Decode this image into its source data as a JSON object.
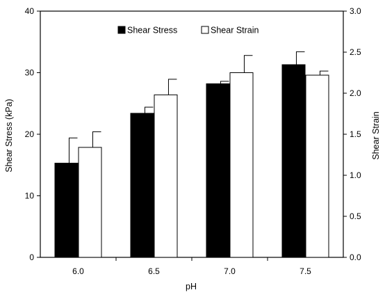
{
  "chart_data": {
    "type": "bar",
    "categories": [
      "6.0",
      "6.5",
      "7.0",
      "7.5"
    ],
    "xlabel": "pH",
    "ylabel_left": "Shear Stress (kPa)",
    "ylabel_right": "Shear Strain",
    "ylim_left": [
      0,
      40
    ],
    "ylim_right": [
      0,
      3.0
    ],
    "yticks_left": [
      "0",
      "10",
      "20",
      "30",
      "40"
    ],
    "yticks_right": [
      "0.0",
      "0.5",
      "1.0",
      "1.5",
      "2.0",
      "2.5",
      "3.0"
    ],
    "legend_position": "top-center",
    "grid": false,
    "series": [
      {
        "name": "Shear Stress",
        "axis": "left",
        "color": "#000000",
        "values": [
          15.3,
          23.4,
          28.2,
          31.3
        ],
        "errors": [
          4.1,
          1.0,
          0.4,
          2.1
        ]
      },
      {
        "name": "Shear Strain",
        "axis": "right",
        "color": "#ffffff",
        "values": [
          1.34,
          1.98,
          2.25,
          2.22
        ],
        "errors": [
          0.19,
          0.19,
          0.21,
          0.05
        ]
      }
    ]
  }
}
